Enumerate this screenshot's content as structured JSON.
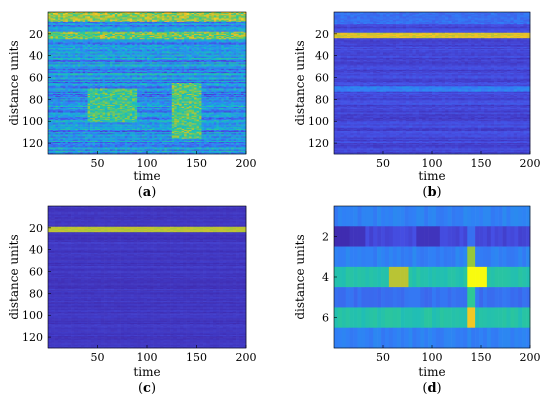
{
  "chart_data": [
    {
      "id": "a",
      "type": "heatmap",
      "caption": "(a)",
      "caption_letter": "a",
      "xlabel": "time",
      "ylabel": "distance units",
      "xlim": [
        0,
        200
      ],
      "ylim": [
        0,
        130
      ],
      "x_ticks": [
        50,
        100,
        150,
        200
      ],
      "y_ticks": [
        20,
        40,
        60,
        80,
        100,
        120
      ],
      "colormap": "parula",
      "colors": {
        "low": "#3e26a8",
        "mid": "#2eb7a0",
        "high": "#f9fb0e"
      },
      "description_values": {
        "background_level": 0.35,
        "features": [
          {
            "row_range": [
              0,
              8
            ],
            "level": 0.75
          },
          {
            "row_range": [
              18,
              24
            ],
            "level": 0.7
          },
          {
            "row_range": [
              70,
              100
            ],
            "time_range": [
              40,
              90
            ],
            "level": 0.6
          },
          {
            "row_range": [
              65,
              115
            ],
            "time_range": [
              125,
              155
            ],
            "level": 0.65
          }
        ]
      }
    },
    {
      "id": "b",
      "type": "heatmap",
      "caption": "(b)",
      "caption_letter": "b",
      "xlabel": "time",
      "ylabel": "distance units",
      "xlim": [
        0,
        200
      ],
      "ylim": [
        0,
        130
      ],
      "x_ticks": [
        50,
        100,
        150,
        200
      ],
      "y_ticks": [
        20,
        40,
        60,
        80,
        100,
        120
      ],
      "colormap": "parula",
      "description_values": {
        "background_level": 0.12,
        "features": [
          {
            "row_range": [
              0,
              10
            ],
            "level": 0.25
          },
          {
            "row_range": [
              19,
              23
            ],
            "level": 0.85
          },
          {
            "row_range": [
              68,
              72
            ],
            "level": 0.3
          }
        ]
      }
    },
    {
      "id": "c",
      "type": "heatmap",
      "caption": "(c)",
      "caption_letter": "c",
      "xlabel": "time",
      "ylabel": "distance units",
      "xlim": [
        0,
        200
      ],
      "ylim": [
        0,
        130
      ],
      "x_ticks": [
        50,
        100,
        150,
        200
      ],
      "y_ticks": [
        20,
        40,
        60,
        80,
        100,
        120
      ],
      "colormap": "parula",
      "description_values": {
        "background_level": 0.06,
        "features": [
          {
            "row_range": [
              19,
              23
            ],
            "level": 0.8
          }
        ]
      }
    },
    {
      "id": "d",
      "type": "heatmap",
      "caption": "(d)",
      "caption_letter": "d",
      "xlabel": "time",
      "ylabel": "distance units",
      "xlim": [
        0,
        200
      ],
      "ylim": [
        0.5,
        7.5
      ],
      "x_ticks": [
        50,
        100,
        150,
        200
      ],
      "y_ticks": [
        2,
        4,
        6
      ],
      "colormap": "parula",
      "rows": [
        1,
        2,
        3,
        4,
        5,
        6,
        7
      ],
      "row_base_levels": [
        0.3,
        0.12,
        0.3,
        0.55,
        0.25,
        0.55,
        0.3
      ],
      "hotspots": [
        {
          "row": 2,
          "time_range": [
            0,
            15
          ],
          "level": 0.02
        },
        {
          "row": 2,
          "time_range": [
            15,
            30
          ],
          "level": 0.05
        },
        {
          "row": 2,
          "time_range": [
            85,
            110
          ],
          "level": 0.05
        },
        {
          "row": 2,
          "time_range": [
            135,
            145
          ],
          "level": 0.25
        },
        {
          "row": 3,
          "time_range": [
            135,
            145
          ],
          "level": 0.75
        },
        {
          "row": 4,
          "time_range": [
            55,
            75
          ],
          "level": 0.8
        },
        {
          "row": 4,
          "time_range": [
            135,
            155
          ],
          "level": 1.0
        },
        {
          "row": 5,
          "time_range": [
            135,
            145
          ],
          "level": 0.6
        },
        {
          "row": 6,
          "time_range": [
            135,
            145
          ],
          "level": 0.9
        }
      ]
    }
  ]
}
